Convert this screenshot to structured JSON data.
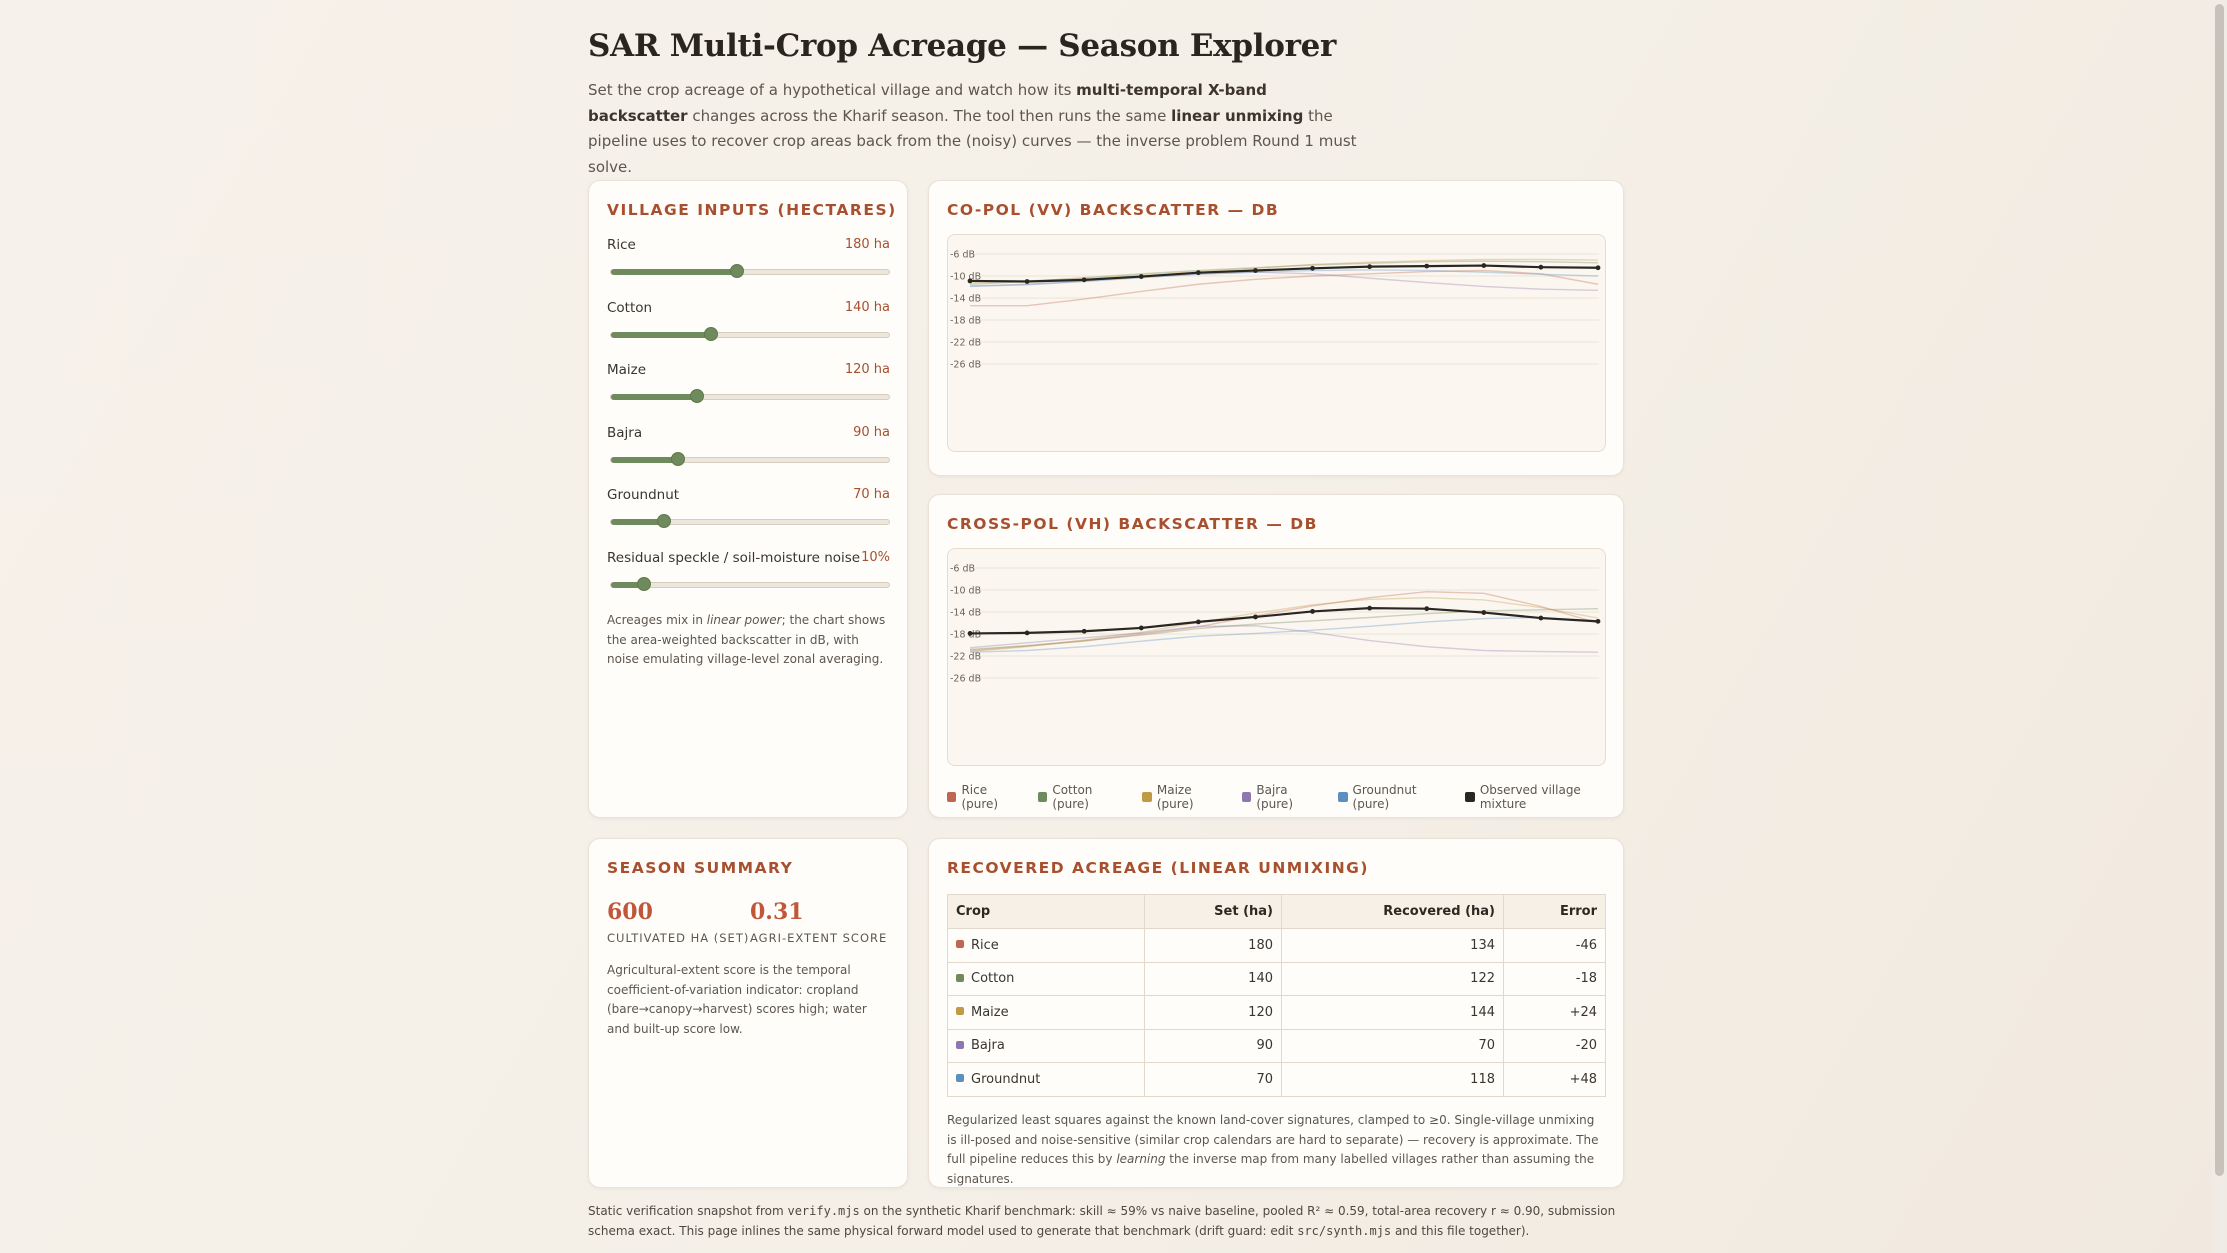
{
  "header": {
    "title": "SAR Multi-Crop Acreage — Season Explorer",
    "intro_1": "Set the crop acreage of a hypothetical village and watch how its ",
    "intro_b1": "multi-temporal X-band backscatter",
    "intro_2": " changes across the Kharif season. The tool then runs the same ",
    "intro_b2": "linear unmixing",
    "intro_3": " the pipeline uses to recover crop areas back from the (noisy) curves — the inverse problem Round 1 must solve."
  },
  "inputs": {
    "title": "Village inputs (hectares)",
    "sliders": [
      {
        "label": "Rice",
        "value_text": "180 ha",
        "fraction": 0.455
      },
      {
        "label": "Cotton",
        "value_text": "140 ha",
        "fraction": 0.36
      },
      {
        "label": "Maize",
        "value_text": "120 ha",
        "fraction": 0.31
      },
      {
        "label": "Bajra",
        "value_text": "90 ha",
        "fraction": 0.24
      },
      {
        "label": "Groundnut",
        "value_text": "70 ha",
        "fraction": 0.19
      },
      {
        "label": "Residual speckle / soil-moisture noise",
        "value_text": "10%",
        "fraction": 0.12
      }
    ],
    "note_1": "Acreages mix in ",
    "note_em": "linear power",
    "note_2": "; the chart shows the area-weighted backscatter in dB, with noise emulating village-level zonal averaging."
  },
  "vv_chart": {
    "title": "Co-pol (VV) backscatter — dB",
    "y_ticks": [
      "-6 dB",
      "-10 dB",
      "-14 dB",
      "-18 dB",
      "-22 dB",
      "-26 dB"
    ]
  },
  "vh_chart": {
    "title": "Cross-pol (VH) backscatter — dB",
    "y_ticks": [
      "-6 dB",
      "-10 dB",
      "-14 dB",
      "-18 dB",
      "-22 dB",
      "-26 dB"
    ]
  },
  "legend": [
    {
      "label": "Rice (pure)",
      "color": "#c0654f"
    },
    {
      "label": "Cotton (pure)",
      "color": "#6f8a5c"
    },
    {
      "label": "Maize (pure)",
      "color": "#c09a45"
    },
    {
      "label": "Bajra (pure)",
      "color": "#8e77b0"
    },
    {
      "label": "Groundnut (pure)",
      "color": "#5b8fc0"
    },
    {
      "label": "Observed village mixture",
      "color": "#2a2622"
    }
  ],
  "chart_data": [
    {
      "type": "line",
      "title": "Co-pol (VV) backscatter — dB",
      "ylabel": "dB",
      "ylim": [
        -28,
        -4.5
      ],
      "x": [
        1,
        2,
        3,
        4,
        5,
        6,
        7,
        8,
        9,
        10,
        11,
        12
      ],
      "series": [
        {
          "name": "Rice (pure)",
          "color": "#c0654f",
          "values": [
            -15.4,
            -15.4,
            -14.2,
            -12.8,
            -11.5,
            -10.6,
            -10.0,
            -9.6,
            -9.2,
            -9.0,
            -9.6,
            -11.5
          ]
        },
        {
          "name": "Cotton (pure)",
          "color": "#6f8a5c",
          "values": [
            -11.5,
            -11.0,
            -10.3,
            -9.6,
            -9.0,
            -8.5,
            -8.0,
            -7.7,
            -7.4,
            -7.3,
            -7.4,
            -7.6
          ]
        },
        {
          "name": "Maize (pure)",
          "color": "#c09a45",
          "values": [
            -11.2,
            -10.9,
            -10.5,
            -9.8,
            -9.2,
            -8.6,
            -7.9,
            -7.5,
            -7.2,
            -7.0,
            -7.0,
            -7.1
          ]
        },
        {
          "name": "Bajra (pure)",
          "color": "#8e77b0",
          "values": [
            -11.8,
            -11.5,
            -10.9,
            -10.2,
            -9.6,
            -9.3,
            -9.6,
            -10.4,
            -11.2,
            -11.9,
            -12.4,
            -12.6
          ]
        },
        {
          "name": "Groundnut (pure)",
          "color": "#5b8fc0",
          "values": [
            -11.9,
            -11.6,
            -11.0,
            -10.3,
            -9.7,
            -9.3,
            -9.0,
            -8.9,
            -9.0,
            -9.3,
            -9.7,
            -10.0
          ]
        },
        {
          "name": "Observed village mixture",
          "color": "#2a2622",
          "values": [
            -10.9,
            -11.0,
            -10.7,
            -10.1,
            -9.4,
            -9.0,
            -8.6,
            -8.3,
            -8.2,
            -8.1,
            -8.4,
            -8.5
          ]
        }
      ]
    },
    {
      "type": "line",
      "title": "Cross-pol (VH) backscatter — dB",
      "ylabel": "dB",
      "ylim": [
        -28,
        -4.5
      ],
      "x": [
        1,
        2,
        3,
        4,
        5,
        6,
        7,
        8,
        9,
        10,
        11,
        12
      ],
      "series": [
        {
          "name": "Rice (pure)",
          "color": "#c0654f",
          "values": [
            -21.0,
            -20.2,
            -19.3,
            -18.0,
            -16.7,
            -14.7,
            -12.9,
            -11.4,
            -10.3,
            -10.6,
            -13.0,
            -16.0
          ]
        },
        {
          "name": "Cotton (pure)",
          "color": "#6f8a5c",
          "values": [
            -20.8,
            -20.1,
            -19.2,
            -18.2,
            -17.0,
            -16.2,
            -15.6,
            -15.0,
            -14.3,
            -13.8,
            -13.6,
            -13.4
          ]
        },
        {
          "name": "Maize (pure)",
          "color": "#c09a45",
          "values": [
            -21.2,
            -20.3,
            -19.1,
            -17.7,
            -15.9,
            -14.2,
            -12.7,
            -11.7,
            -11.4,
            -11.8,
            -13.2,
            -15.1
          ]
        },
        {
          "name": "Bajra (pure)",
          "color": "#8e77b0",
          "values": [
            -20.5,
            -19.6,
            -18.7,
            -17.8,
            -16.6,
            -16.5,
            -17.7,
            -19.2,
            -20.3,
            -21.0,
            -21.2,
            -21.3
          ]
        },
        {
          "name": "Groundnut (pure)",
          "color": "#5b8fc0",
          "values": [
            -21.3,
            -21.0,
            -20.3,
            -19.3,
            -18.4,
            -17.9,
            -17.3,
            -16.6,
            -15.8,
            -15.2,
            -15.0,
            -15.6
          ]
        },
        {
          "name": "Observed village mixture",
          "color": "#2a2622",
          "values": [
            -17.9,
            -17.8,
            -17.5,
            -16.9,
            -15.8,
            -14.9,
            -13.9,
            -13.3,
            -13.4,
            -14.1,
            -15.1,
            -15.7
          ]
        }
      ]
    },
    {
      "type": "table",
      "title": "Recovered acreage (linear unmixing)",
      "columns": [
        "Crop",
        "Set (ha)",
        "Recovered (ha)",
        "Error"
      ],
      "rows": [
        [
          "Rice",
          "180",
          "134",
          "-46"
        ],
        [
          "Cotton",
          "140",
          "122",
          "-18"
        ],
        [
          "Maize",
          "120",
          "144",
          "+24"
        ],
        [
          "Bajra",
          "90",
          "70",
          "-20"
        ],
        [
          "Groundnut",
          "70",
          "118",
          "+48"
        ]
      ]
    }
  ],
  "summary": {
    "title": "Season summary",
    "stat1_value": "600",
    "stat1_label": "CULTIVATED HA (SET)",
    "stat2_value": "0.31",
    "stat2_label": "AGRI-EXTENT SCORE",
    "note": "Agricultural-extent score is the temporal coefficient-of-variation indicator: cropland (bare→canopy→harvest) scores high; water and built-up score low."
  },
  "recovered": {
    "title": "Recovered acreage (linear unmixing)",
    "columns": [
      "Crop",
      "Set (ha)",
      "Recovered (ha)",
      "Error"
    ],
    "rows": [
      {
        "crop": "Rice",
        "set": "180",
        "rec": "134",
        "err": "-46",
        "color": "#c0654f"
      },
      {
        "crop": "Cotton",
        "set": "140",
        "rec": "122",
        "err": "-18",
        "color": "#6f8a5c"
      },
      {
        "crop": "Maize",
        "set": "120",
        "rec": "144",
        "err": "+24",
        "color": "#c09a45"
      },
      {
        "crop": "Bajra",
        "set": "90",
        "rec": "70",
        "err": "-20",
        "color": "#8e77b0"
      },
      {
        "crop": "Groundnut",
        "set": "70",
        "rec": "118",
        "err": "+48",
        "color": "#5b8fc0"
      }
    ],
    "note_1": "Regularized least squares against the known land-cover signatures, clamped to ≥0. Single-village unmixing is ill-posed and noise-sensitive (similar crop calendars are hard to separate) — recovery is approximate. The full pipeline reduces this by ",
    "note_em": "learning",
    "note_2": " the inverse map from many labelled villages rather than assuming the signatures."
  },
  "footer": {
    "t1": "Static verification snapshot from ",
    "code1": "verify.mjs",
    "t2": " on the synthetic Kharif benchmark: skill ≈ 59% vs naive baseline, pooled R² ≈ 0.59, total-area recovery r ≈ 0.90, submission schema exact. This page inlines the same physical forward model used to generate that benchmark (drift guard: edit ",
    "code2": "src/synth.mjs",
    "t3": " and this file together)."
  }
}
